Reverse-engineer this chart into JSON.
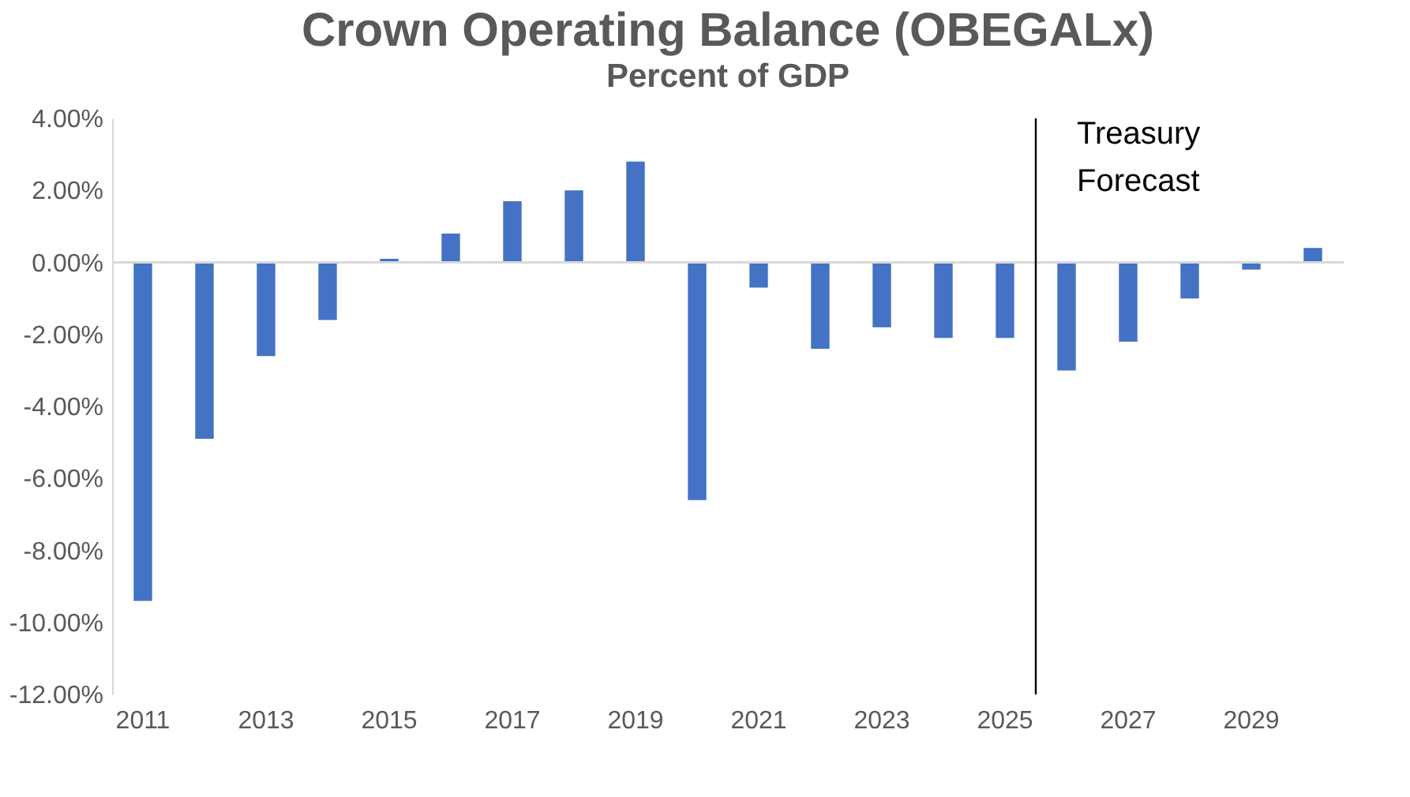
{
  "chart_data": {
    "type": "bar",
    "title": "Crown Operating Balance (OBEGALx)",
    "subtitle": "Percent of GDP",
    "categories": [
      "2011",
      null,
      "2013",
      null,
      "2015",
      null,
      "2017",
      null,
      "2019",
      null,
      "2021",
      null,
      "2023",
      null,
      "2025",
      null,
      "2027",
      null,
      "2029",
      null
    ],
    "values": [
      -9.4,
      -4.9,
      -2.6,
      -1.6,
      0.1,
      0.8,
      1.7,
      2.0,
      2.8,
      -6.6,
      -0.7,
      -2.4,
      -1.8,
      -2.1,
      -2.1,
      -3.0,
      -2.2,
      -1.0,
      -0.2,
      0.4
    ],
    "color": "#4472c4",
    "ylim": [
      -12,
      4
    ],
    "yticks": [
      {
        "value": -12,
        "label": "-12.00%"
      },
      {
        "value": -10,
        "label": "-10.00%"
      },
      {
        "value": -8,
        "label": "-8.00%"
      },
      {
        "value": -6,
        "label": "-6.00%"
      },
      {
        "value": -4,
        "label": "-4.00%"
      },
      {
        "value": -2,
        "label": "-2.00%"
      },
      {
        "value": 0,
        "label": "0.00%"
      },
      {
        "value": 2,
        "label": "2.00%"
      },
      {
        "value": 4,
        "label": "4.00%"
      }
    ],
    "ref_lines": [
      {
        "axis": "x",
        "value": "2025",
        "label": "Treasury Forecast",
        "color": "#000000"
      }
    ],
    "grid": false
  }
}
